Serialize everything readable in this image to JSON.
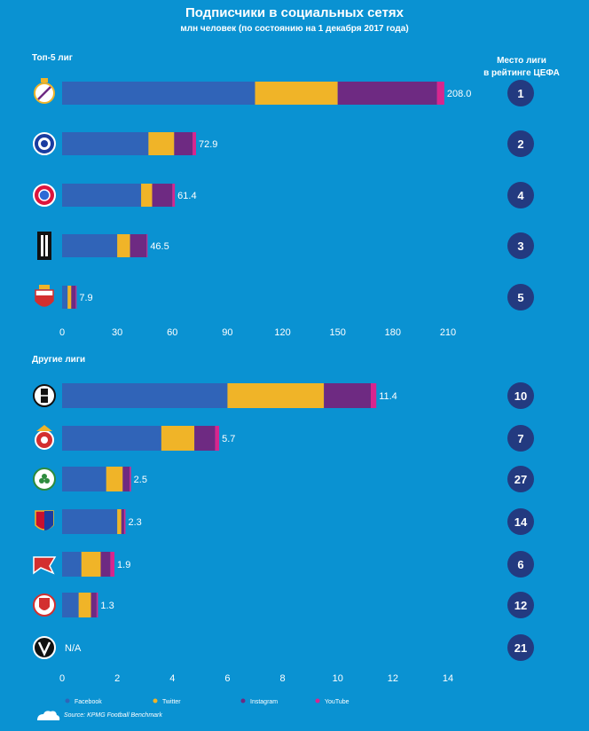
{
  "title": "Подписчики в социальных сетях",
  "subtitle": "млн человек (по состоянию на 1 декабря 2017 года)",
  "rank_header": [
    "Место лиги",
    "в рейтинге ЦЕФА"
  ],
  "source": "Source: KPMG Football Benchmark",
  "colors": {
    "background": "#0a92d2",
    "facebook": "#3064b8",
    "twitter": "#f0b428",
    "instagram": "#6e2a82",
    "youtube": "#d7268e",
    "rank_circle": "#233a80",
    "grid": "#4aa6d8"
  },
  "chart_data": [
    {
      "type": "bar",
      "stacked": true,
      "orientation": "horizontal",
      "title": "Топ-5 лиг",
      "xlim": [
        0,
        210
      ],
      "xticks": [
        "0",
        "30",
        "60",
        "90",
        "120",
        "150",
        "180",
        "210"
      ],
      "grid": false,
      "total_labels": [
        "208.0",
        "72.9",
        "61.4",
        "46.5",
        "7.9"
      ],
      "ranks": [
        "1",
        "2",
        "4",
        "3",
        "5"
      ],
      "logos": [
        "real-madrid-logo",
        "chelsea-logo",
        "bayern-logo",
        "juventus-logo",
        "monaco-logo"
      ],
      "series": [
        {
          "name": "Facebook",
          "values": [
            105,
            47,
            43,
            30,
            3
          ]
        },
        {
          "name": "Twitter",
          "values": [
            45,
            14,
            6,
            7,
            2
          ]
        },
        {
          "name": "Instagram",
          "values": [
            54,
            10,
            11,
            9,
            2.4
          ]
        },
        {
          "name": "YouTube",
          "values": [
            4,
            1.9,
            1.4,
            0.5,
            0.5
          ]
        }
      ]
    },
    {
      "type": "bar",
      "stacked": true,
      "orientation": "horizontal",
      "title": "Другие лиги",
      "xlim": [
        0,
        14
      ],
      "xticks": [
        "0",
        "2",
        "4",
        "6",
        "8",
        "10",
        "12",
        "14"
      ],
      "grid": false,
      "total_labels": [
        "11.4",
        "5.7",
        "2.5",
        "2.3",
        "1.9",
        "1.3",
        "N/A"
      ],
      "ranks": [
        "10",
        "7",
        "27",
        "14",
        "6",
        "12",
        "21"
      ],
      "logos": [
        "besiktas-logo",
        "benfica-logo",
        "celtic-logo",
        "basel-logo",
        "spartak-logo",
        "feyenoord-logo",
        "pfc-logo"
      ],
      "series": [
        {
          "name": "Facebook",
          "values": [
            6.0,
            3.6,
            1.6,
            2.0,
            0.7,
            0.6,
            0
          ]
        },
        {
          "name": "Twitter",
          "values": [
            3.5,
            1.2,
            0.6,
            0.15,
            0.7,
            0.45,
            0
          ]
        },
        {
          "name": "Instagram",
          "values": [
            1.7,
            0.75,
            0.25,
            0.1,
            0.35,
            0.2,
            0
          ]
        },
        {
          "name": "YouTube",
          "values": [
            0.2,
            0.15,
            0.05,
            0.05,
            0.15,
            0.05,
            0
          ]
        }
      ]
    }
  ],
  "legend": [
    "Facebook",
    "Twitter",
    "Instagram",
    "YouTube"
  ]
}
